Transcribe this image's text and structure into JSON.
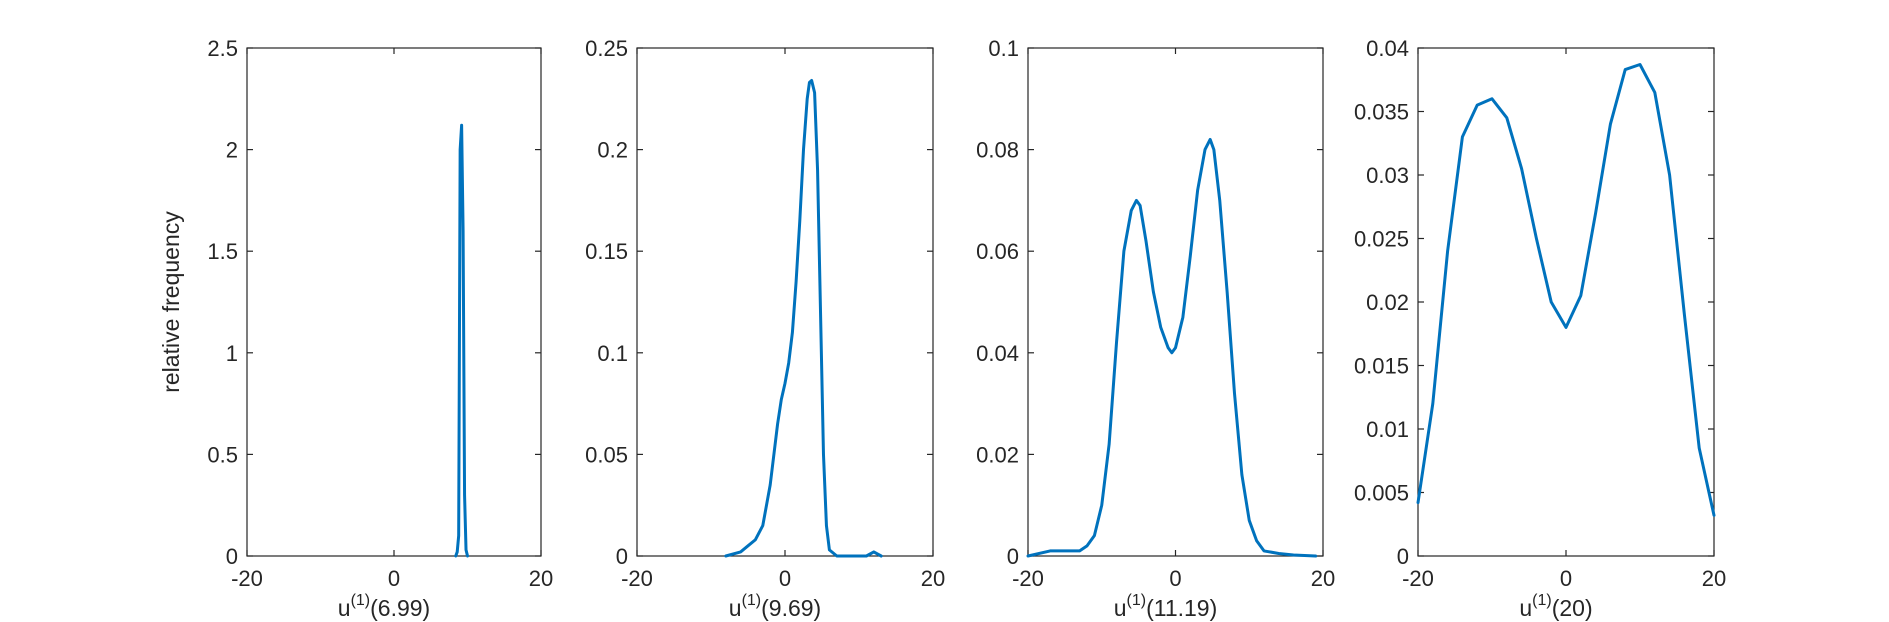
{
  "figure": {
    "background": "#ffffff",
    "line_color": "#0072BD",
    "axis_color": "#262626"
  },
  "shared_ylabel": "relative frequency",
  "chart_data": [
    {
      "type": "line",
      "title": "",
      "xlabel": {
        "base": "u",
        "sup": "(1)",
        "arg": "(6.99)"
      },
      "ylabel": "relative frequency",
      "xlim": [
        -20,
        20
      ],
      "ylim": [
        0,
        2.5
      ],
      "xticks": [
        -20,
        0,
        20
      ],
      "xtick_labels": [
        "-20",
        "0",
        "20"
      ],
      "yticks": [
        0,
        0.5,
        1,
        1.5,
        2,
        2.5
      ],
      "ytick_labels": [
        "0",
        "0.5",
        "1",
        "1.5",
        "2",
        "2.5"
      ],
      "grid": false,
      "series": [
        {
          "x": [
            8.4,
            8.6,
            8.8,
            9.0,
            9.2,
            9.4,
            9.6,
            9.8,
            10.0
          ],
          "y": [
            0,
            0.02,
            0.1,
            2.0,
            2.12,
            1.6,
            0.3,
            0.03,
            0
          ]
        }
      ]
    },
    {
      "type": "line",
      "title": "",
      "xlabel": {
        "base": "u",
        "sup": "(1)",
        "arg": "(9.69)"
      },
      "ylabel": "",
      "xlim": [
        -20,
        20
      ],
      "ylim": [
        0,
        0.25
      ],
      "xticks": [
        -20,
        0,
        20
      ],
      "xtick_labels": [
        "-20",
        "0",
        "20"
      ],
      "yticks": [
        0,
        0.05,
        0.1,
        0.15,
        0.2,
        0.25
      ],
      "ytick_labels": [
        "0",
        "0.05",
        "0.1",
        "0.15",
        "0.2",
        "0.25"
      ],
      "grid": false,
      "series": [
        {
          "x": [
            -8,
            -6,
            -5,
            -4,
            -3,
            -2,
            -1,
            -0.5,
            0,
            0.5,
            1,
            1.5,
            2,
            2.5,
            3,
            3.3,
            3.6,
            4,
            4.4,
            4.8,
            5.2,
            5.6,
            6,
            7,
            9,
            11,
            12,
            13
          ],
          "y": [
            0,
            0.002,
            0.005,
            0.008,
            0.015,
            0.035,
            0.065,
            0.077,
            0.085,
            0.095,
            0.11,
            0.135,
            0.165,
            0.2,
            0.225,
            0.233,
            0.234,
            0.228,
            0.19,
            0.12,
            0.05,
            0.015,
            0.003,
            0,
            0,
            0,
            0.002,
            0
          ]
        }
      ]
    },
    {
      "type": "line",
      "title": "",
      "xlabel": {
        "base": "u",
        "sup": "(1)",
        "arg": "(11.19)"
      },
      "ylabel": "",
      "xlim": [
        -20,
        20
      ],
      "ylim": [
        0,
        0.1
      ],
      "xticks": [
        -20,
        0,
        20
      ],
      "xtick_labels": [
        "-20",
        "0",
        "20"
      ],
      "yticks": [
        0,
        0.02,
        0.04,
        0.06,
        0.08,
        0.1
      ],
      "ytick_labels": [
        "0",
        "0.02",
        "0.04",
        "0.06",
        "0.08",
        "0.1"
      ],
      "grid": false,
      "series": [
        {
          "x": [
            -20,
            -17,
            -15,
            -13,
            -12,
            -11,
            -10,
            -9,
            -8,
            -7,
            -6,
            -5.3,
            -4.8,
            -4,
            -3,
            -2,
            -1,
            -0.5,
            0,
            1,
            2,
            3,
            4,
            4.7,
            5.2,
            6,
            7,
            8,
            9,
            10,
            11,
            12,
            14,
            16,
            19
          ],
          "y": [
            0,
            0.001,
            0.001,
            0.001,
            0.002,
            0.004,
            0.01,
            0.022,
            0.042,
            0.06,
            0.068,
            0.07,
            0.069,
            0.062,
            0.052,
            0.045,
            0.041,
            0.04,
            0.041,
            0.047,
            0.059,
            0.072,
            0.08,
            0.082,
            0.08,
            0.07,
            0.052,
            0.032,
            0.016,
            0.007,
            0.003,
            0.001,
            0.0005,
            0.0002,
            0
          ]
        }
      ]
    },
    {
      "type": "line",
      "title": "",
      "xlabel": {
        "base": "u",
        "sup": "(1)",
        "arg": "(20)"
      },
      "ylabel": "",
      "xlim": [
        -20,
        20
      ],
      "ylim": [
        0,
        0.04
      ],
      "xticks": [
        -20,
        0,
        20
      ],
      "xtick_labels": [
        "-20",
        "0",
        "20"
      ],
      "yticks": [
        0,
        0.005,
        0.01,
        0.015,
        0.02,
        0.025,
        0.03,
        0.035,
        0.04
      ],
      "ytick_labels": [
        "0",
        "0.005",
        "0.01",
        "0.015",
        "0.02",
        "0.025",
        "0.03",
        "0.035",
        "0.04"
      ],
      "grid": false,
      "series": [
        {
          "x": [
            -20,
            -18,
            -16,
            -14,
            -12,
            -10,
            -8,
            -6,
            -4,
            -2,
            0,
            2,
            4,
            6,
            8,
            10,
            12,
            14,
            16,
            18,
            20
          ],
          "y": [
            0.0042,
            0.012,
            0.024,
            0.033,
            0.0355,
            0.036,
            0.0345,
            0.0305,
            0.025,
            0.02,
            0.018,
            0.0205,
            0.027,
            0.034,
            0.0383,
            0.0387,
            0.0365,
            0.03,
            0.019,
            0.0085,
            0.0032
          ]
        }
      ]
    }
  ]
}
